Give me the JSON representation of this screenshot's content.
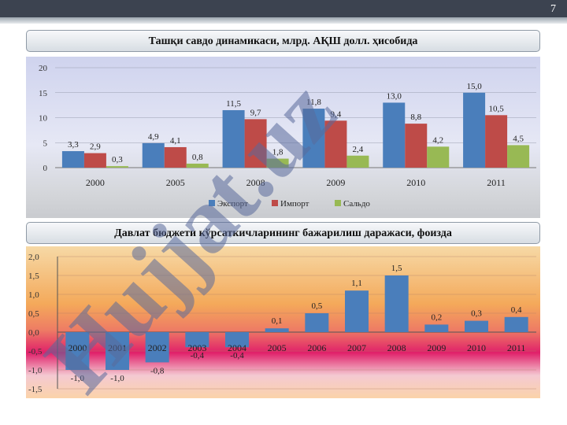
{
  "page_number": "7",
  "chart1_title": "Ташқи савдо динамикаси, млрд. АҚШ долл. ҳисобида",
  "chart2_title": "Давлат бюджети кўрсаткичларининг бажарилиш даражаси, фоизда",
  "watermark_text": "Hujjat.uz",
  "colors": {
    "export": "#4a7ebb",
    "import": "#be4b48",
    "saldo": "#98b954",
    "budget": "#4a7ebb"
  },
  "chart_data": [
    {
      "type": "bar",
      "categories": [
        "2000",
        "2005",
        "2008",
        "2009",
        "2010",
        "2011"
      ],
      "series": [
        {
          "name": "Экспорт",
          "values": [
            3.3,
            4.9,
            11.5,
            11.8,
            13.0,
            15.0
          ],
          "labels": [
            "3,3",
            "4,9",
            "11,5",
            "11,8",
            "13,0",
            "15,0"
          ]
        },
        {
          "name": "Импорт",
          "values": [
            2.9,
            4.1,
            9.7,
            9.4,
            8.8,
            10.5
          ],
          "labels": [
            "2,9",
            "4,1",
            "9,7",
            "9,4",
            "8,8",
            "10,5"
          ]
        },
        {
          "name": "Сальдо",
          "values": [
            0.3,
            0.8,
            1.8,
            2.4,
            4.2,
            4.5
          ],
          "labels": [
            "0,3",
            "0,8",
            "1,8",
            "2,4",
            "4,2",
            "4,5"
          ]
        }
      ],
      "yticks": [
        "0",
        "5",
        "10",
        "15",
        "20"
      ],
      "ylim": [
        0,
        20
      ],
      "grid": true,
      "legend": "bottom"
    },
    {
      "type": "bar",
      "categories": [
        "2000",
        "2001",
        "2002",
        "2003",
        "2004",
        "2005",
        "2006",
        "2007",
        "2008",
        "2009",
        "2010",
        "2011"
      ],
      "series": [
        {
          "values": [
            -1.0,
            -1.0,
            -0.8,
            -0.4,
            -0.4,
            0.1,
            0.5,
            1.1,
            1.5,
            0.2,
            0.3,
            0.4
          ],
          "labels": [
            "-1,0",
            "-1,0",
            "-0,8",
            "-0,4",
            "-0,4",
            "0,1",
            "0,5",
            "1,1",
            "1,5",
            "0,2",
            "0,3",
            "0,4"
          ]
        }
      ],
      "yticks": [
        "2,0",
        "1,5",
        "1,0",
        "0,5",
        "0,0",
        "-0,5",
        "-1,0",
        "-1,5"
      ],
      "ylim": [
        -1.5,
        2.0
      ],
      "grid": true,
      "legend": "none"
    }
  ]
}
